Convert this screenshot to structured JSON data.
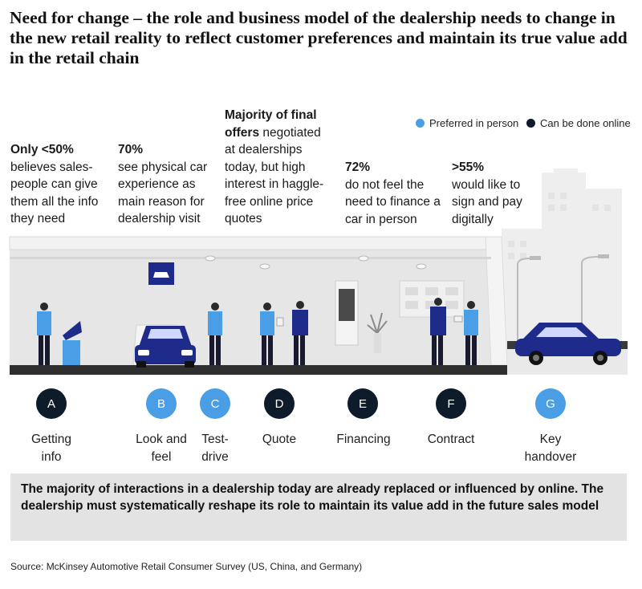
{
  "title": "Need for change – the role and business model of the dealership needs to change in the new retail reality to reflect customer preferences and maintain its true value add in the retail chain",
  "legend": {
    "in_person": "Preferred in person",
    "online": "Can be done online",
    "colors": {
      "in_person": "#4a9ee6",
      "online": "#0d1b2a"
    }
  },
  "stats": [
    {
      "bold": "Only <50%",
      "text": "believes sales-people can give them all the info they need"
    },
    {
      "bold": "70%",
      "text": "see physical car experience as main reason for dealership visit"
    },
    {
      "bold": "Majority of final offers",
      "text": "negotiated at dealerships today, but high interest in haggle-free online price quotes"
    },
    {
      "bold": "72%",
      "text": "do not feel the need to finance a car in person"
    },
    {
      "bold": ">55%",
      "text": "would like to sign and pay digitally"
    }
  ],
  "steps": [
    {
      "letter": "A",
      "label": "Getting info",
      "mode": "online"
    },
    {
      "letter": "B",
      "label": "Look and feel",
      "mode": "in_person"
    },
    {
      "letter": "C",
      "label": "Test-drive",
      "mode": "in_person"
    },
    {
      "letter": "D",
      "label": "Quote",
      "mode": "online"
    },
    {
      "letter": "E",
      "label": "Financing",
      "mode": "online"
    },
    {
      "letter": "F",
      "label": "Contract",
      "mode": "online"
    },
    {
      "letter": "G",
      "label": "Key handover",
      "mode": "in_person"
    }
  ],
  "callout": "The majority of interactions in a dealership today are already replaced or influenced by online. The dealership must systematically reshape its role to maintain its value add in the future sales model",
  "source": "Source: McKinsey Automotive Retail Consumer Survey (US, China, and Germany)"
}
